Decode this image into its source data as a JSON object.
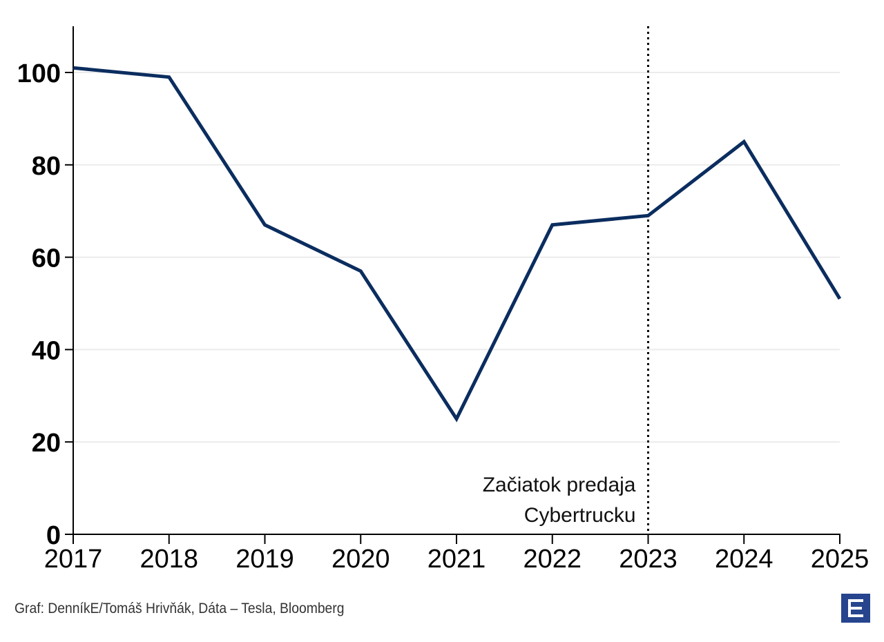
{
  "chart_data": {
    "type": "line",
    "title": "",
    "xlabel": "",
    "ylabel": "",
    "x": [
      "2017",
      "2018",
      "2019",
      "2020",
      "2021",
      "2022",
      "2023",
      "2024",
      "2025"
    ],
    "series": [
      {
        "name": "",
        "color": "#0b2d5f",
        "values": [
          101,
          99,
          67,
          57,
          25,
          67,
          69,
          85,
          51
        ]
      }
    ],
    "ylim": [
      0,
      110
    ],
    "yticks": [
      0,
      20,
      40,
      60,
      80,
      100
    ],
    "grid": {
      "y": true,
      "x": false,
      "color": "#ebebeb"
    },
    "legend": null,
    "annotations": [
      {
        "type": "vline",
        "x": "2023",
        "style": "dotted",
        "color": "#000000",
        "text_lines": [
          "Začiatok predaja",
          "Cybertrucku"
        ]
      }
    ]
  },
  "footer": {
    "source": "Graf: DenníkE/Tomáš Hrivňák, Dáta – Tesla, Bloomberg",
    "logo": "denniky-e-logo",
    "logo_color": "#26458e"
  }
}
